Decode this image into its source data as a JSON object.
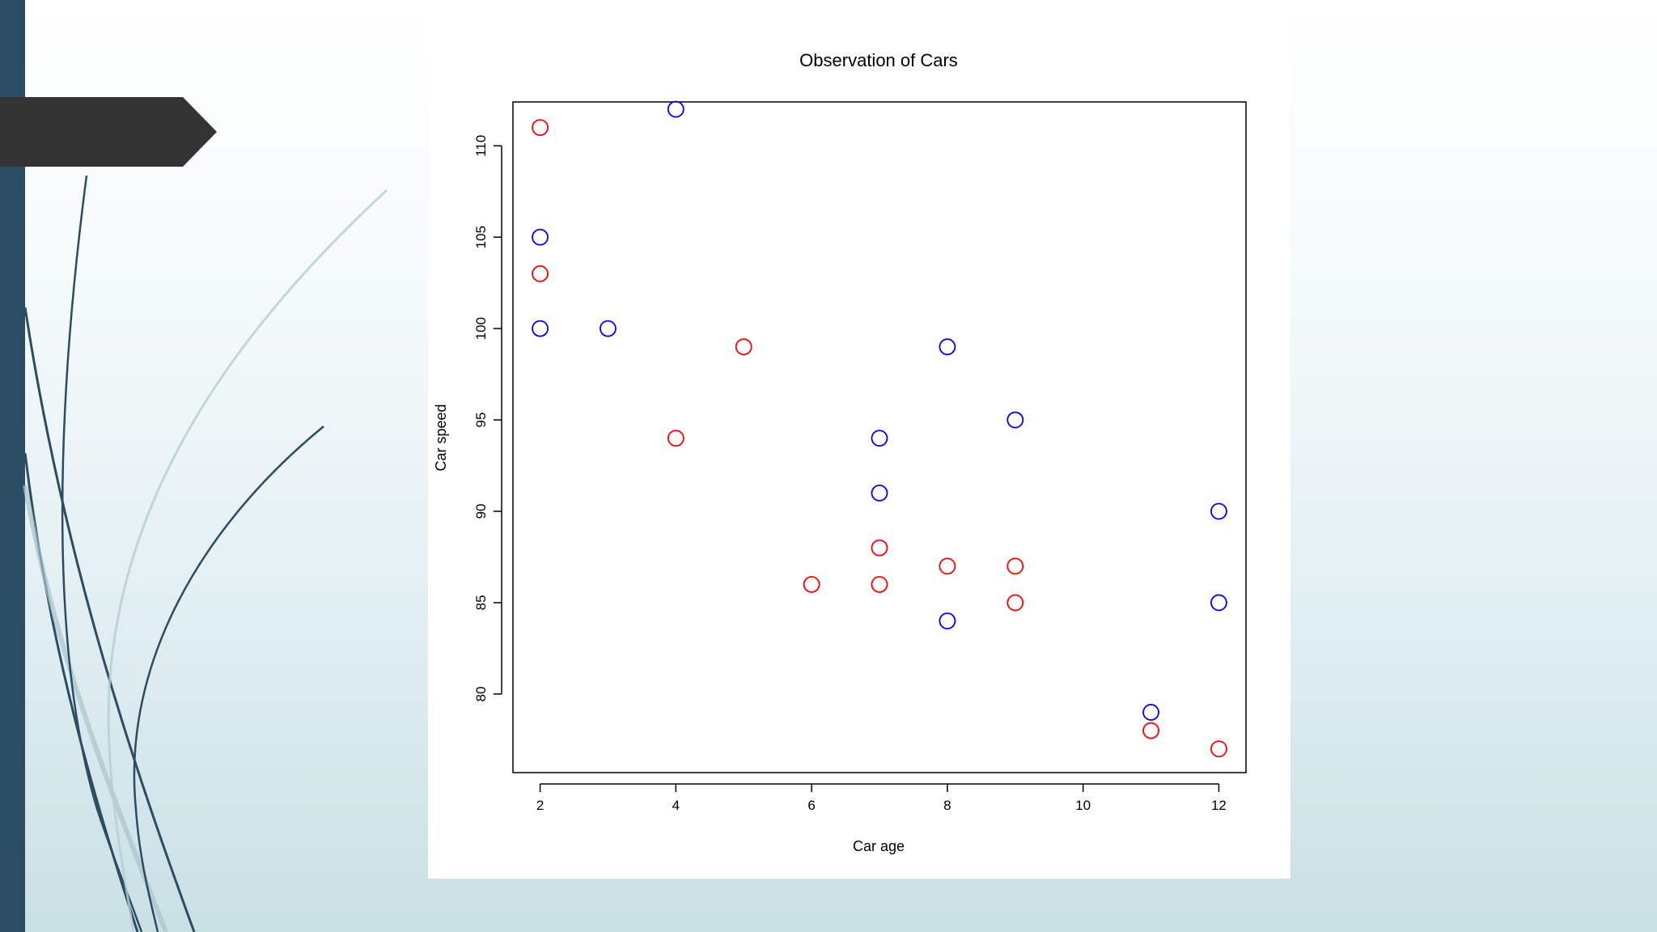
{
  "slide": {
    "accent_bar_color": "#2b4d63",
    "title_arrow_color": "#333333"
  },
  "chart_data": {
    "type": "scatter",
    "title": "Observation of Cars",
    "xlabel": "Car age",
    "ylabel": "Car speed",
    "xlim": [
      1.6,
      12.4
    ],
    "ylim": [
      75.7,
      112.4
    ],
    "xticks": [
      2,
      4,
      6,
      8,
      10,
      12
    ],
    "yticks": [
      80,
      85,
      90,
      95,
      100,
      105,
      110
    ],
    "grid": false,
    "marker": "open-circle",
    "series": [
      {
        "color": "#ff0000",
        "x": [
          2,
          2,
          4,
          5,
          6,
          7,
          7,
          8,
          9,
          9,
          11,
          12
        ],
        "y": [
          111,
          103,
          94,
          99,
          86,
          88,
          86,
          87,
          87,
          85,
          78,
          77
        ]
      },
      {
        "color": "#0000ff",
        "x": [
          2,
          2,
          3,
          4,
          7,
          7,
          8,
          8,
          9,
          11,
          12,
          12
        ],
        "y": [
          105,
          100,
          100,
          112,
          94,
          91,
          99,
          84,
          95,
          79,
          90,
          85
        ]
      }
    ]
  }
}
